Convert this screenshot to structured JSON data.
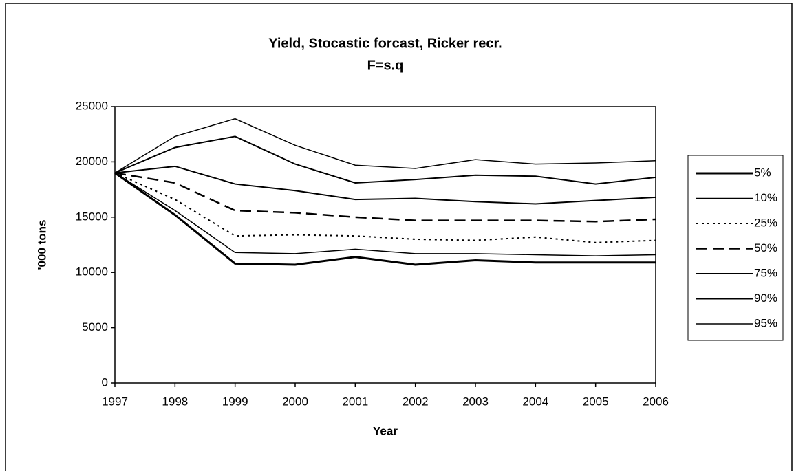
{
  "chart_data": {
    "type": "line",
    "title": "Yield, Stocastic forcast, Ricker recr.",
    "subtitle": "F=s.q",
    "x_label": "Year",
    "y_label": "'000 tons",
    "x": [
      1997,
      1998,
      1999,
      2000,
      2001,
      2002,
      2003,
      2004,
      2005,
      2006
    ],
    "xlim": [
      1997,
      2006
    ],
    "xticks": [
      1997,
      1998,
      1999,
      2000,
      2001,
      2002,
      2003,
      2004,
      2005,
      2006
    ],
    "ylim": [
      0,
      25000
    ],
    "yticks": [
      0,
      5000,
      10000,
      15000,
      20000,
      25000
    ],
    "grid": false,
    "legend": "right",
    "series": [
      {
        "name": "5%",
        "color": "#000000",
        "dash": "solid",
        "width": 3,
        "values": [
          19000,
          15200,
          10800,
          10700,
          11400,
          10700,
          11100,
          10900,
          10900,
          10900
        ]
      },
      {
        "name": "10%",
        "color": "#000000",
        "dash": "solid",
        "width": 1.5,
        "values": [
          19000,
          15600,
          11800,
          11700,
          12100,
          11700,
          11700,
          11600,
          11500,
          11600
        ]
      },
      {
        "name": "25%",
        "color": "#000000",
        "dash": "dot",
        "width": 2,
        "values": [
          19000,
          16600,
          13300,
          13400,
          13300,
          13000,
          12900,
          13200,
          12700,
          12900
        ]
      },
      {
        "name": "50%",
        "color": "#000000",
        "dash": "dash",
        "width": 2.5,
        "values": [
          19000,
          18100,
          15600,
          15400,
          15000,
          14700,
          14700,
          14700,
          14600,
          14800
        ]
      },
      {
        "name": "75%",
        "color": "#000000",
        "dash": "solid",
        "width": 2,
        "values": [
          19000,
          19600,
          18000,
          17400,
          16600,
          16700,
          16400,
          16200,
          16500,
          16800
        ]
      },
      {
        "name": "90%",
        "color": "#000000",
        "dash": "solid",
        "width": 2,
        "values": [
          19000,
          21300,
          22300,
          19800,
          18100,
          18400,
          18800,
          18700,
          18000,
          18600
        ]
      },
      {
        "name": "95%",
        "color": "#000000",
        "dash": "solid",
        "width": 1.5,
        "values": [
          19000,
          22300,
          23900,
          21500,
          19700,
          19400,
          20200,
          19800,
          19900,
          20100
        ]
      }
    ]
  }
}
